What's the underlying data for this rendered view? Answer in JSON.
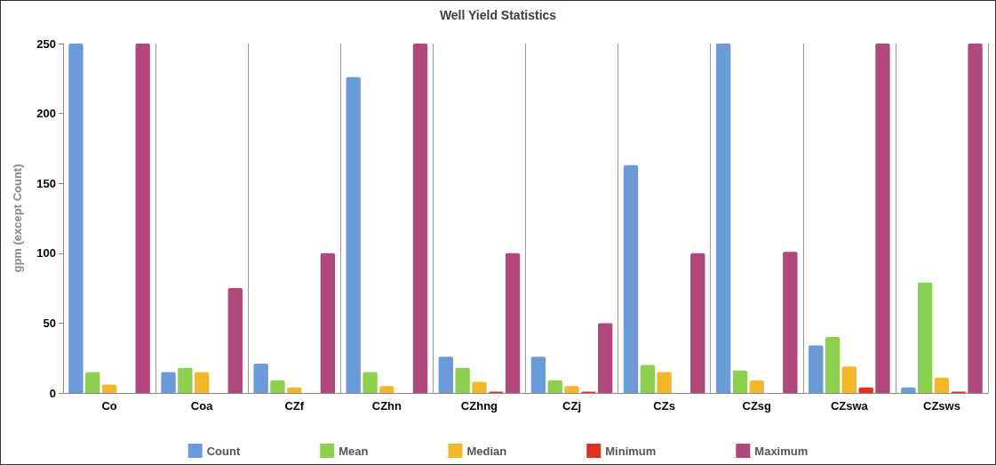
{
  "chart_data": {
    "type": "bar",
    "title": "Well Yield Statistics",
    "ylabel": "gpm (except Count)",
    "categories": [
      "Co",
      "Coa",
      "CZf",
      "CZhn",
      "CZhng",
      "CZj",
      "CZs",
      "CZsg",
      "CZswa",
      "CZsws"
    ],
    "series": [
      {
        "name": "Count",
        "color": "#6a9bd8",
        "values": [
          250,
          15,
          21,
          226,
          26,
          26,
          163,
          250,
          34,
          4
        ]
      },
      {
        "name": "Mean",
        "color": "#8dcf4f",
        "values": [
          15,
          18,
          9,
          15,
          18,
          9,
          20,
          16,
          40,
          79
        ]
      },
      {
        "name": "Median",
        "color": "#f1b82a",
        "values": [
          6,
          15,
          4,
          5,
          8,
          5,
          15,
          9,
          19,
          11
        ]
      },
      {
        "name": "Minimum",
        "color": "#e2301f",
        "values": [
          0,
          0,
          0,
          0,
          1,
          1,
          0,
          0,
          4,
          1
        ]
      },
      {
        "name": "Maximum",
        "color": "#b0487e",
        "values": [
          250,
          75,
          100,
          250,
          100,
          50,
          100,
          101,
          250,
          250
        ]
      }
    ],
    "ylim": [
      0,
      250
    ],
    "yticks": [
      0,
      50,
      100,
      150,
      200,
      250
    ],
    "grid": "x",
    "legend": "bottom"
  }
}
